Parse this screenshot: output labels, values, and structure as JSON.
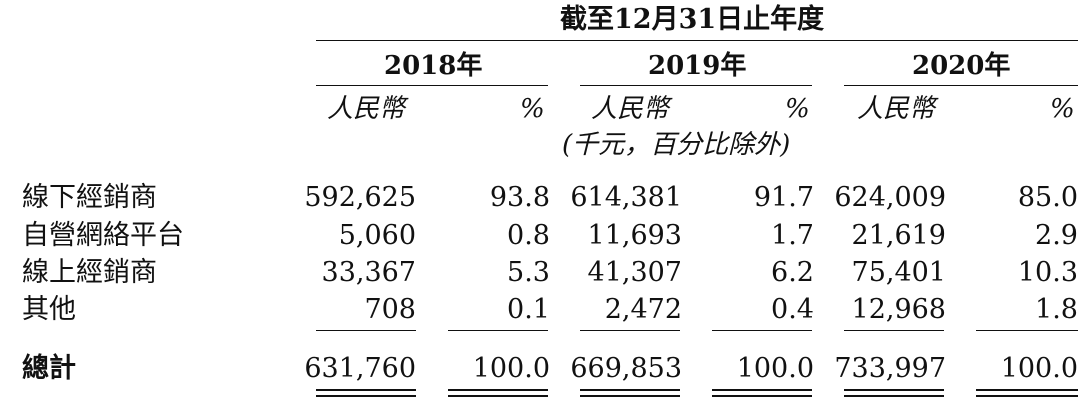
{
  "header": {
    "period_title": "截至12月31日止年度",
    "years": [
      "2018年",
      "2019年",
      "2020年"
    ],
    "currency_label": "人民幣",
    "percent_label": "%",
    "unit_note": "(千元，百分比除外)"
  },
  "rows": [
    {
      "label": "線下經銷商",
      "values": [
        "592,625",
        "93.8",
        "614,381",
        "91.7",
        "624,009",
        "85.0"
      ]
    },
    {
      "label": "自營網絡平台",
      "values": [
        "5,060",
        "0.8",
        "11,693",
        "1.7",
        "21,619",
        "2.9"
      ]
    },
    {
      "label": "線上經銷商",
      "values": [
        "33,367",
        "5.3",
        "41,307",
        "6.2",
        "75,401",
        "10.3"
      ]
    },
    {
      "label": "其他",
      "values": [
        "708",
        "0.1",
        "2,472",
        "0.4",
        "12,968",
        "1.8"
      ]
    }
  ],
  "total": {
    "label": "總計",
    "values": [
      "631,760",
      "100.0",
      "669,853",
      "100.0",
      "733,997",
      "100.0"
    ]
  }
}
